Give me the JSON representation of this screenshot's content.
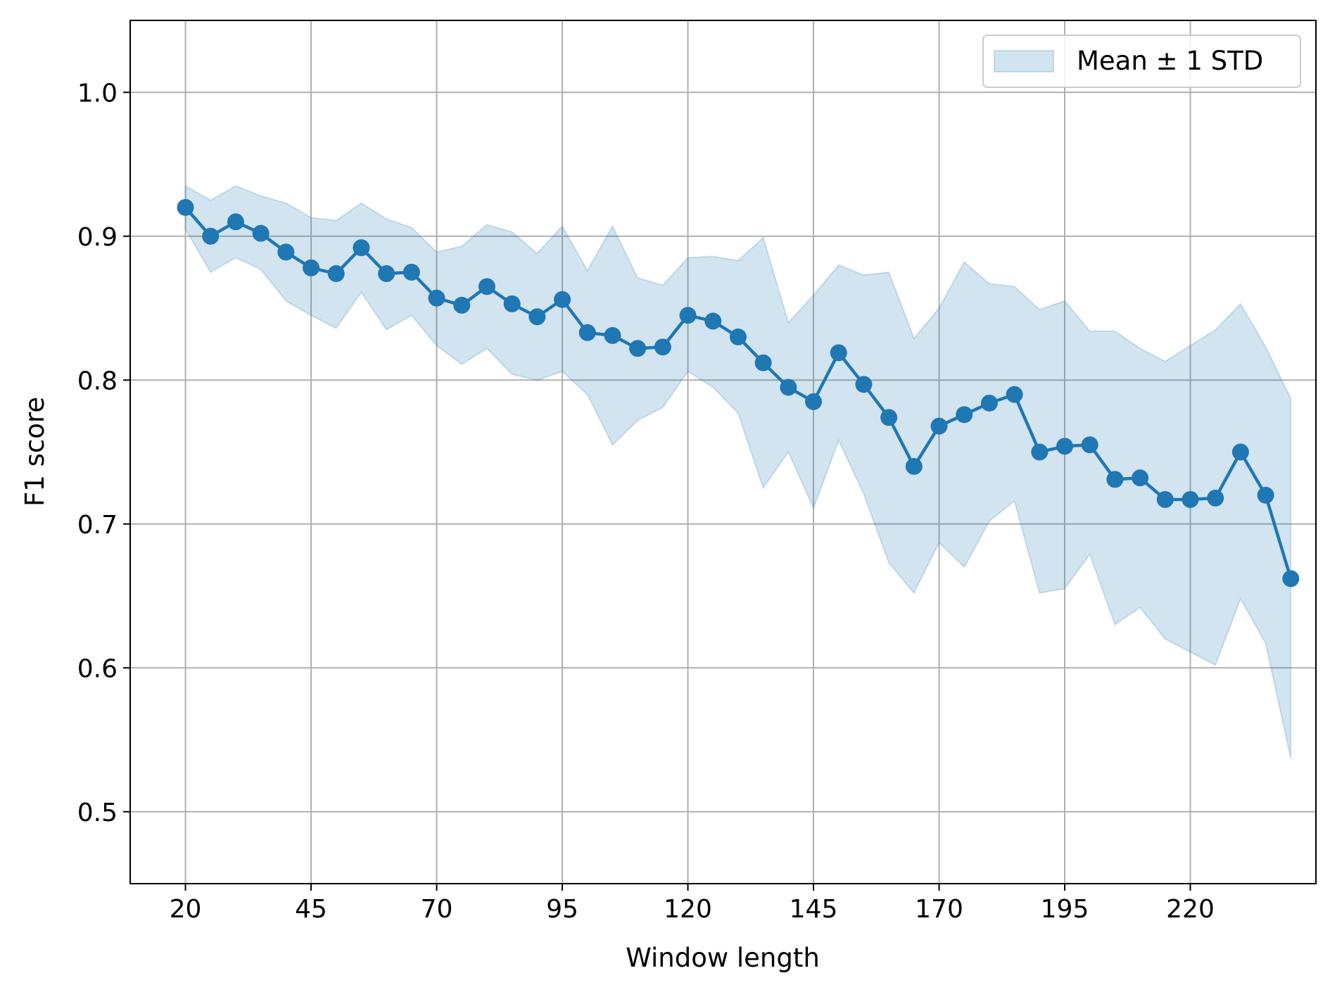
{
  "chart_data": {
    "type": "line",
    "title": "",
    "xlabel": "Window length",
    "ylabel": "F1 score",
    "xlim": [
      9,
      245
    ],
    "ylim": [
      0.45,
      1.05
    ],
    "xticks": [
      20,
      45,
      70,
      95,
      120,
      145,
      170,
      195,
      220
    ],
    "yticks": [
      0.5,
      0.6,
      0.7,
      0.8,
      0.9,
      1.0
    ],
    "grid": true,
    "legend": {
      "position": "top-right",
      "entries": [
        "Mean ± 1 STD"
      ]
    },
    "colors": {
      "line": "#1f77b4",
      "band": "#1f77b4"
    },
    "x": [
      20,
      25,
      30,
      35,
      40,
      45,
      50,
      55,
      60,
      65,
      70,
      75,
      80,
      85,
      90,
      95,
      100,
      105,
      110,
      115,
      120,
      125,
      130,
      135,
      140,
      145,
      150,
      155,
      160,
      165,
      170,
      175,
      180,
      185,
      190,
      195,
      200,
      205,
      210,
      215,
      220,
      225,
      230,
      235,
      240
    ],
    "series": [
      {
        "values": [
          0.92,
          0.9,
          0.91,
          0.902,
          0.889,
          0.878,
          0.874,
          0.892,
          0.874,
          0.875,
          0.857,
          0.852,
          0.865,
          0.853,
          0.844,
          0.856,
          0.833,
          0.831,
          0.822,
          0.823,
          0.845,
          0.841,
          0.83,
          0.812,
          0.795,
          0.785,
          0.819,
          0.797,
          0.774,
          0.74,
          0.768,
          0.776,
          0.784,
          0.79,
          0.75,
          0.754,
          0.755,
          0.731,
          0.732,
          0.717,
          0.717,
          0.718,
          0.75,
          0.72,
          0.662
        ],
        "upper": [
          0.935,
          0.925,
          0.935,
          0.928,
          0.923,
          0.913,
          0.911,
          0.923,
          0.912,
          0.906,
          0.889,
          0.893,
          0.908,
          0.903,
          0.888,
          0.907,
          0.876,
          0.907,
          0.871,
          0.866,
          0.885,
          0.886,
          0.883,
          0.899,
          0.84,
          0.859,
          0.88,
          0.873,
          0.875,
          0.829,
          0.85,
          0.882,
          0.867,
          0.865,
          0.849,
          0.855,
          0.834,
          0.834,
          0.822,
          0.813,
          0.824,
          0.835,
          0.853,
          0.823,
          0.787
        ],
        "lower": [
          0.905,
          0.875,
          0.885,
          0.877,
          0.855,
          0.845,
          0.836,
          0.861,
          0.835,
          0.845,
          0.824,
          0.811,
          0.822,
          0.804,
          0.8,
          0.806,
          0.79,
          0.755,
          0.772,
          0.781,
          0.806,
          0.795,
          0.777,
          0.725,
          0.75,
          0.711,
          0.758,
          0.721,
          0.673,
          0.652,
          0.687,
          0.67,
          0.702,
          0.716,
          0.652,
          0.655,
          0.679,
          0.63,
          0.642,
          0.62,
          0.611,
          0.602,
          0.648,
          0.617,
          0.537
        ]
      }
    ]
  }
}
